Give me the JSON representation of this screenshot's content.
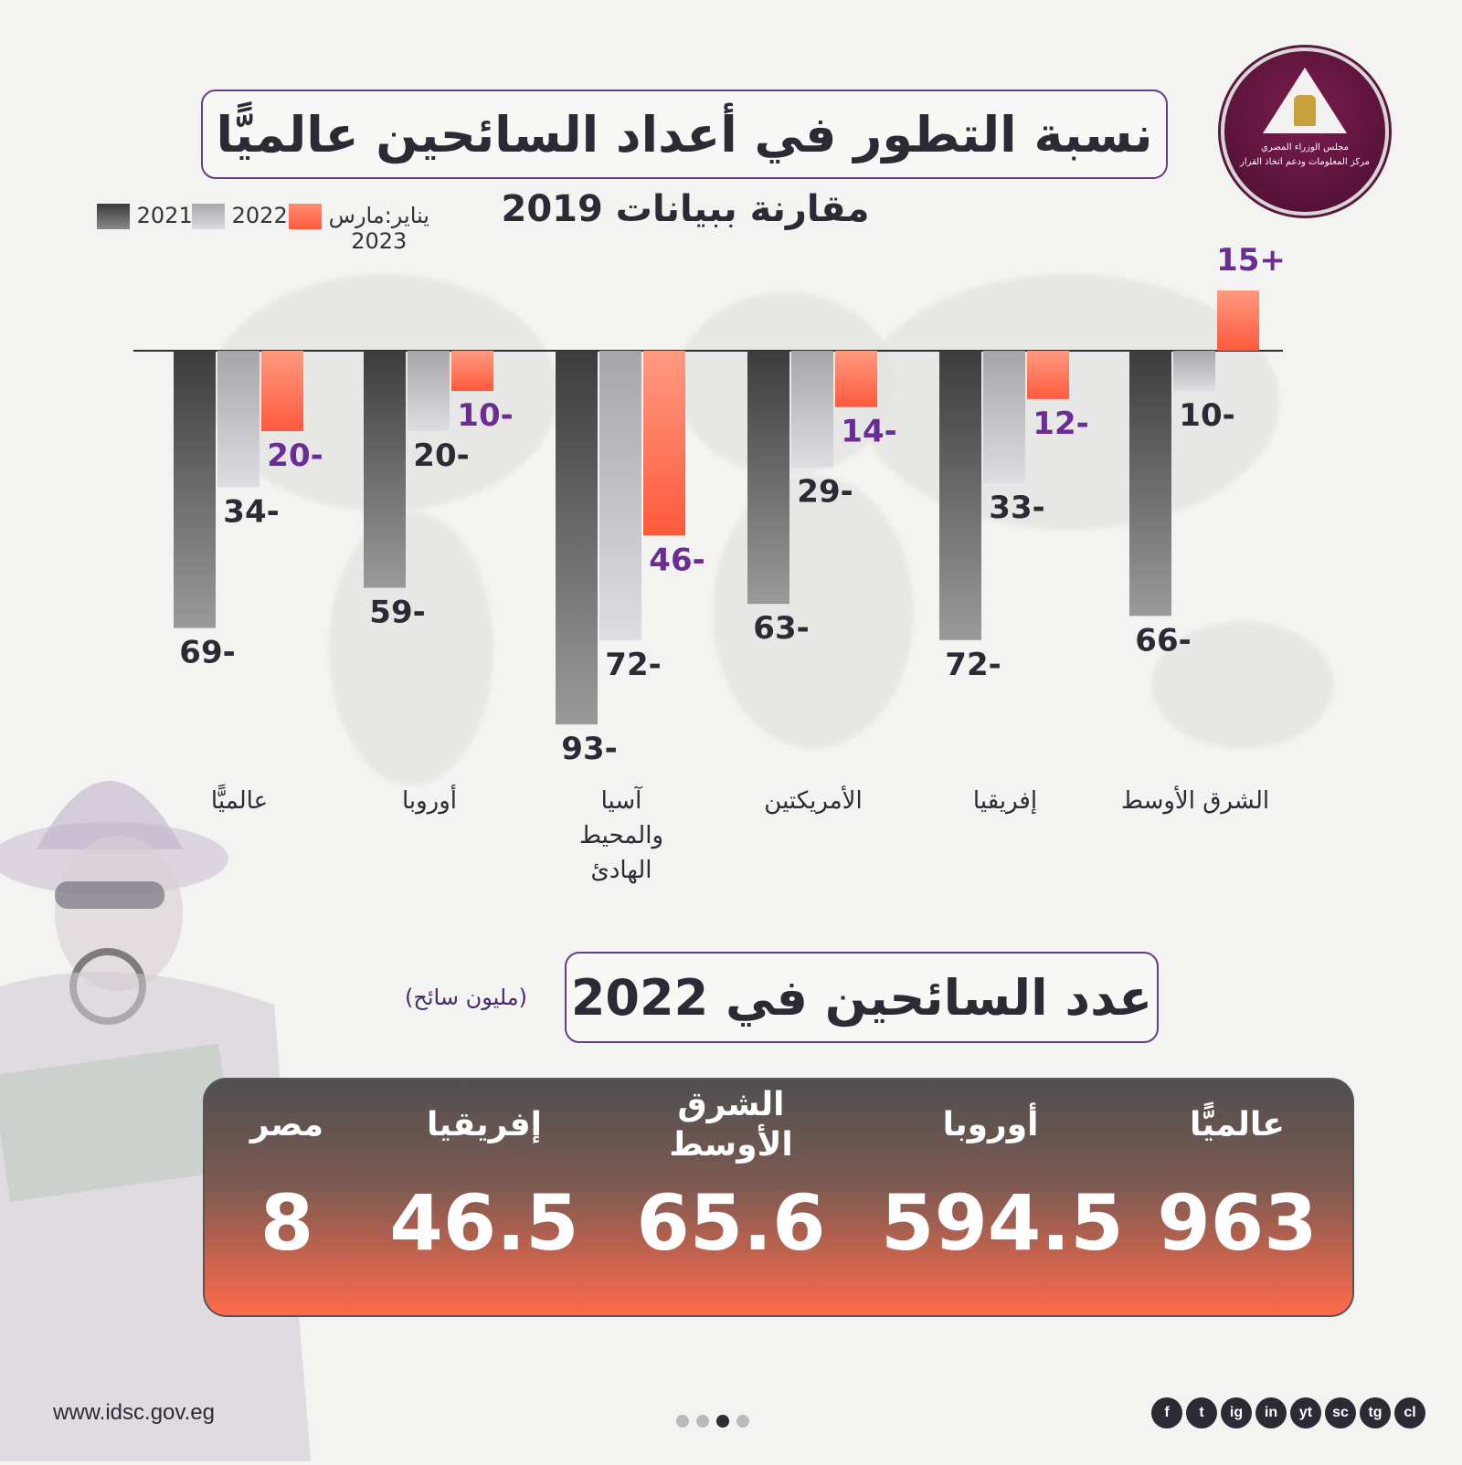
{
  "header": {
    "title": "نسبة التطور في أعداد السائحين عالميًّا",
    "logo_line1": "مجلس الوزراء المصري",
    "logo_line2": "مركز المعلومات ودعم اتخاذ القرار"
  },
  "chart_data": {
    "type": "bar",
    "subtitle": "مقارنة ببيانات 2019",
    "legend_placement": "top-left",
    "categories": [
      "عالميًّا",
      "أوروبا",
      "آسيا والمحيط الهادئ",
      "الأمريكتين",
      "إفريقيا",
      "الشرق الأوسط"
    ],
    "series": [
      {
        "name": "2021",
        "values": [
          -69,
          -59,
          -93,
          -63,
          -72,
          -66
        ],
        "labels": [
          "69-",
          "59-",
          "93-",
          "63-",
          "72-",
          "66-"
        ],
        "color": "#4a4a4a"
      },
      {
        "name": "2022",
        "values": [
          -34,
          -20,
          -72,
          -29,
          -33,
          -10
        ],
        "labels": [
          "34-",
          "20-",
          "72-",
          "29-",
          "33-",
          "10-"
        ],
        "color": "#c4c4c8"
      },
      {
        "name": "يناير:مارس 2023",
        "values": [
          -20,
          -10,
          -46,
          -14,
          -12,
          15
        ],
        "labels": [
          "20-",
          "10-",
          "46-",
          "14-",
          "12-",
          "15+"
        ],
        "color": "#ff6a50"
      }
    ],
    "grid": false
  },
  "legend": {
    "l2021": "2021",
    "l2022": "2022",
    "l2023_line1": "يناير:مارس",
    "l2023_line2": "2023"
  },
  "categories_display": [
    [
      "عالميًّا"
    ],
    [
      "أوروبا"
    ],
    [
      "آسيا",
      "والمحيط",
      "الهادئ"
    ],
    [
      "الأمريكتين"
    ],
    [
      "إفريقيا"
    ],
    [
      "الشرق الأوسط"
    ]
  ],
  "count_section": {
    "title": "عدد السائحين في 2022",
    "unit": "(مليون سائح)",
    "stats": [
      {
        "label": "عالميًّا",
        "value": "963"
      },
      {
        "label": "أوروبا",
        "value": "594.5"
      },
      {
        "label": "الشرق الأوسط",
        "value": "65.6"
      },
      {
        "label": "إفريقيا",
        "value": "46.5"
      },
      {
        "label": "مصر",
        "value": "8"
      }
    ]
  },
  "footer": {
    "url": "www.idsc.gov.eg",
    "social": [
      "f",
      "t",
      "ig",
      "in",
      "yt",
      "sc",
      "tg",
      "cl"
    ]
  },
  "colors": {
    "purple_accent": "#6a2d96",
    "dark_text": "#2b2b36"
  }
}
